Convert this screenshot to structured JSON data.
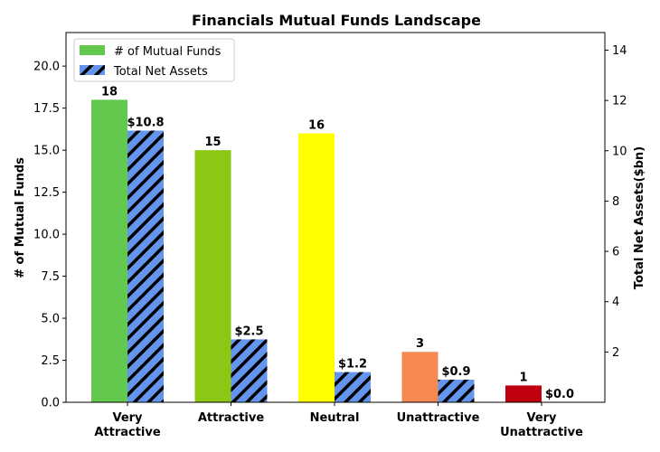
{
  "chart_data": {
    "type": "bar",
    "title": "Financials Mutual Funds Landscape",
    "categories": [
      [
        "Very",
        "Attractive"
      ],
      [
        "Attractive"
      ],
      [
        "Neutral"
      ],
      [
        "Unattractive"
      ],
      [
        "Very",
        "Unattractive"
      ]
    ],
    "bar_colors": [
      "#63c84e",
      "#8cc716",
      "#ffff00",
      "#f58950",
      "#c0000f"
    ],
    "series": [
      {
        "name": "# of Mutual Funds",
        "axis": "left",
        "values": [
          18,
          15,
          16,
          3,
          1
        ],
        "labels": [
          "18",
          "15",
          "16",
          "3",
          "1"
        ],
        "legend_color": "#63c84e"
      },
      {
        "name": "Total Net Assets",
        "axis": "right",
        "values": [
          10.8,
          2.5,
          1.2,
          0.9,
          0.0
        ],
        "labels": [
          "$10.8",
          "$2.5",
          "$1.2",
          "$0.9",
          "$0.0"
        ],
        "color": "#6495ed",
        "hatch": "diagonal"
      }
    ],
    "y_left": {
      "label": "# of Mutual Funds",
      "ylim": [
        0,
        22
      ],
      "ticks": [
        0,
        2.5,
        5,
        7.5,
        10,
        12.5,
        15,
        17.5,
        20
      ],
      "tick_labels": [
        "0.0",
        "2.5",
        "5.0",
        "7.5",
        "10.0",
        "12.5",
        "15.0",
        "17.5",
        "20.0"
      ]
    },
    "y_right": {
      "label": "Total Net Assets($bn)",
      "ylim": [
        0,
        14.7
      ],
      "ticks": [
        2,
        4,
        6,
        8,
        10,
        12,
        14
      ],
      "tick_labels": [
        "2",
        "4",
        "6",
        "8",
        "10",
        "12",
        "14"
      ]
    },
    "grid": false,
    "legend": "top-left"
  }
}
